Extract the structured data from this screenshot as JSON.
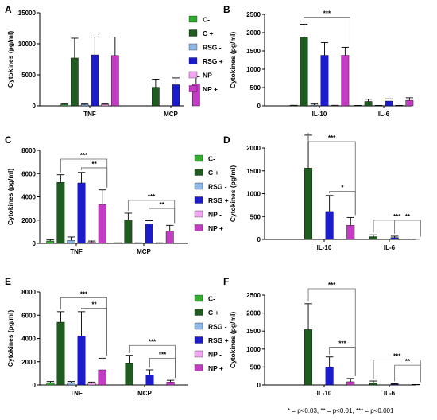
{
  "footnote": "* = p<0.03, ** = p<0.01, *** = p<0.001",
  "legend": [
    {
      "name": "C-",
      "color": "#2fae2f"
    },
    {
      "name": "C +",
      "color": "#1f5c1f"
    },
    {
      "name": "RSG -",
      "color": "#8db8e8"
    },
    {
      "name": "RSG +",
      "color": "#1c1ccc"
    },
    {
      "name": "NP -",
      "color": "#f4a6f4"
    },
    {
      "name": "NP +",
      "color": "#c33cc3"
    }
  ],
  "chart_data": [
    {
      "panel": "A",
      "type": "bar",
      "ylabel": "Cytokines (pg/ml)",
      "ylim": [
        0,
        15000
      ],
      "yticks": [
        0,
        5000,
        10000,
        15000
      ],
      "categories": [
        "TNF",
        "MCP"
      ],
      "series": [
        {
          "name": "C-",
          "values": [
            200,
            0
          ],
          "errors": [
            100,
            0
          ]
        },
        {
          "name": "C +",
          "values": [
            7700,
            3000
          ],
          "errors": [
            3200,
            1300
          ]
        },
        {
          "name": "RSG -",
          "values": [
            200,
            0
          ],
          "errors": [
            100,
            0
          ]
        },
        {
          "name": "RSG +",
          "values": [
            8200,
            3400
          ],
          "errors": [
            2900,
            1100
          ]
        },
        {
          "name": "NP -",
          "values": [
            200,
            0
          ],
          "errors": [
            100,
            0
          ]
        },
        {
          "name": "NP +",
          "values": [
            8100,
            3500
          ],
          "errors": [
            3000,
            1200
          ]
        }
      ],
      "significance": []
    },
    {
      "panel": "B",
      "type": "bar",
      "ylabel": "Cytokines (pg/ml)",
      "ylim": [
        0,
        2500
      ],
      "yticks": [
        0,
        500,
        1000,
        1500,
        2000,
        2500
      ],
      "categories": [
        "IL-10",
        "IL-6"
      ],
      "series": [
        {
          "name": "C-",
          "values": [
            10,
            5
          ],
          "errors": [
            5,
            3
          ]
        },
        {
          "name": "C +",
          "values": [
            1880,
            120
          ],
          "errors": [
            350,
            60
          ]
        },
        {
          "name": "RSG -",
          "values": [
            20,
            5
          ],
          "errors": [
            30,
            3
          ]
        },
        {
          "name": "RSG +",
          "values": [
            1380,
            130
          ],
          "errors": [
            350,
            60
          ]
        },
        {
          "name": "NP -",
          "values": [
            10,
            5
          ],
          "errors": [
            5,
            3
          ]
        },
        {
          "name": "NP +",
          "values": [
            1380,
            150
          ],
          "errors": [
            220,
            70
          ]
        }
      ],
      "significance": [
        {
          "cat": 0,
          "from": 1,
          "to": 5,
          "y": 2420,
          "label": "***"
        }
      ]
    },
    {
      "panel": "C",
      "type": "bar",
      "ylabel": "Cytokines (pg/ml)",
      "ylim": [
        0,
        8000
      ],
      "yticks": [
        0,
        2000,
        4000,
        6000,
        8000
      ],
      "categories": [
        "TNF",
        "MCP"
      ],
      "series": [
        {
          "name": "C-",
          "values": [
            200,
            30
          ],
          "errors": [
            100,
            20
          ]
        },
        {
          "name": "C +",
          "values": [
            5250,
            2000
          ],
          "errors": [
            650,
            600
          ]
        },
        {
          "name": "RSG -",
          "values": [
            250,
            30
          ],
          "errors": [
            300,
            20
          ]
        },
        {
          "name": "RSG +",
          "values": [
            5200,
            1650
          ],
          "errors": [
            900,
            300
          ]
        },
        {
          "name": "NP -",
          "values": [
            100,
            30
          ],
          "errors": [
            100,
            20
          ]
        },
        {
          "name": "NP +",
          "values": [
            3350,
            1050
          ],
          "errors": [
            1250,
            500
          ]
        }
      ],
      "significance": [
        {
          "cat": 0,
          "from": 1,
          "to": 5,
          "y": 7250,
          "label": "***"
        },
        {
          "cat": 0,
          "from": 3,
          "to": 5,
          "y": 6500,
          "label": "**"
        },
        {
          "cat": 1,
          "from": 1,
          "to": 5,
          "y": 3700,
          "label": "***"
        },
        {
          "cat": 1,
          "from": 3,
          "to": 5,
          "y": 3000,
          "label": "**"
        }
      ]
    },
    {
      "panel": "D",
      "type": "bar",
      "ylabel": "Cytokines (pg/ml)",
      "ylim": [
        0,
        2000
      ],
      "yticks": [
        0,
        500,
        1000,
        1500,
        2000
      ],
      "categories": [
        "IL-10",
        "IL-6"
      ],
      "series": [
        {
          "name": "C-",
          "values": [
            0,
            0
          ],
          "errors": [
            0,
            0
          ]
        },
        {
          "name": "C +",
          "values": [
            1560,
            60
          ],
          "errors": [
            720,
            40
          ]
        },
        {
          "name": "RSG -",
          "values": [
            0,
            0
          ],
          "errors": [
            0,
            0
          ]
        },
        {
          "name": "RSG +",
          "values": [
            610,
            40
          ],
          "errors": [
            350,
            30
          ]
        },
        {
          "name": "NP -",
          "values": [
            0,
            0
          ],
          "errors": [
            0,
            0
          ]
        },
        {
          "name": "NP +",
          "values": [
            310,
            5
          ],
          "errors": [
            170,
            5
          ]
        }
      ],
      "significance": [
        {
          "cat": 0,
          "from": 1,
          "to": 5,
          "y": 2150,
          "label": "***"
        },
        {
          "cat": 0,
          "from": 3,
          "to": 5,
          "y": 1050,
          "label": "*"
        },
        {
          "cat": 1,
          "from": 1,
          "to": 5,
          "y": 420,
          "label": "***"
        },
        {
          "cat": 1,
          "from": 3,
          "to": 5,
          "y": 420,
          "label": "**"
        }
      ]
    },
    {
      "panel": "E",
      "type": "bar",
      "ylabel": "Cytokines (pg/ml)",
      "ylim": [
        0,
        8000
      ],
      "yticks": [
        0,
        2000,
        4000,
        6000,
        8000
      ],
      "categories": [
        "TNF",
        "MCP"
      ],
      "series": [
        {
          "name": "C-",
          "values": [
            200,
            0
          ],
          "errors": [
            100,
            0
          ]
        },
        {
          "name": "C +",
          "values": [
            5400,
            1900
          ],
          "errors": [
            900,
            650
          ]
        },
        {
          "name": "RSG -",
          "values": [
            200,
            0
          ],
          "errors": [
            100,
            0
          ]
        },
        {
          "name": "RSG +",
          "values": [
            4200,
            850
          ],
          "errors": [
            2100,
            450
          ]
        },
        {
          "name": "NP -",
          "values": [
            150,
            0
          ],
          "errors": [
            100,
            0
          ]
        },
        {
          "name": "NP +",
          "values": [
            1300,
            250
          ],
          "errors": [
            1000,
            150
          ]
        }
      ],
      "significance": [
        {
          "cat": 0,
          "from": 1,
          "to": 5,
          "y": 7500,
          "label": "***"
        },
        {
          "cat": 0,
          "from": 3,
          "to": 5,
          "y": 6600,
          "label": "**"
        },
        {
          "cat": 1,
          "from": 1,
          "to": 5,
          "y": 3400,
          "label": "***"
        },
        {
          "cat": 1,
          "from": 3,
          "to": 5,
          "y": 2300,
          "label": "***"
        }
      ]
    },
    {
      "panel": "F",
      "type": "bar",
      "ylabel": "Cytokines (pg/ml)",
      "ylim": [
        0,
        2500
      ],
      "yticks": [
        0,
        500,
        1000,
        1500,
        2000,
        2500
      ],
      "categories": [
        "IL-10",
        "IL-6"
      ],
      "series": [
        {
          "name": "C-",
          "values": [
            0,
            0
          ],
          "errors": [
            0,
            0
          ]
        },
        {
          "name": "C +",
          "values": [
            1540,
            60
          ],
          "errors": [
            720,
            50
          ]
        },
        {
          "name": "RSG -",
          "values": [
            0,
            0
          ],
          "errors": [
            0,
            0
          ]
        },
        {
          "name": "RSG +",
          "values": [
            500,
            20
          ],
          "errors": [
            280,
            15
          ]
        },
        {
          "name": "NP -",
          "values": [
            0,
            0
          ],
          "errors": [
            0,
            0
          ]
        },
        {
          "name": "NP +",
          "values": [
            90,
            5
          ],
          "errors": [
            90,
            5
          ]
        }
      ],
      "significance": [
        {
          "cat": 0,
          "from": 1,
          "to": 5,
          "y": 2700,
          "label": "***"
        },
        {
          "cat": 0,
          "from": 3,
          "to": 5,
          "y": 1050,
          "label": "***"
        },
        {
          "cat": 1,
          "from": 1,
          "to": 5,
          "y": 700,
          "label": "***"
        },
        {
          "cat": 1,
          "from": 3,
          "to": 5,
          "y": 550,
          "label": "**"
        }
      ]
    }
  ]
}
